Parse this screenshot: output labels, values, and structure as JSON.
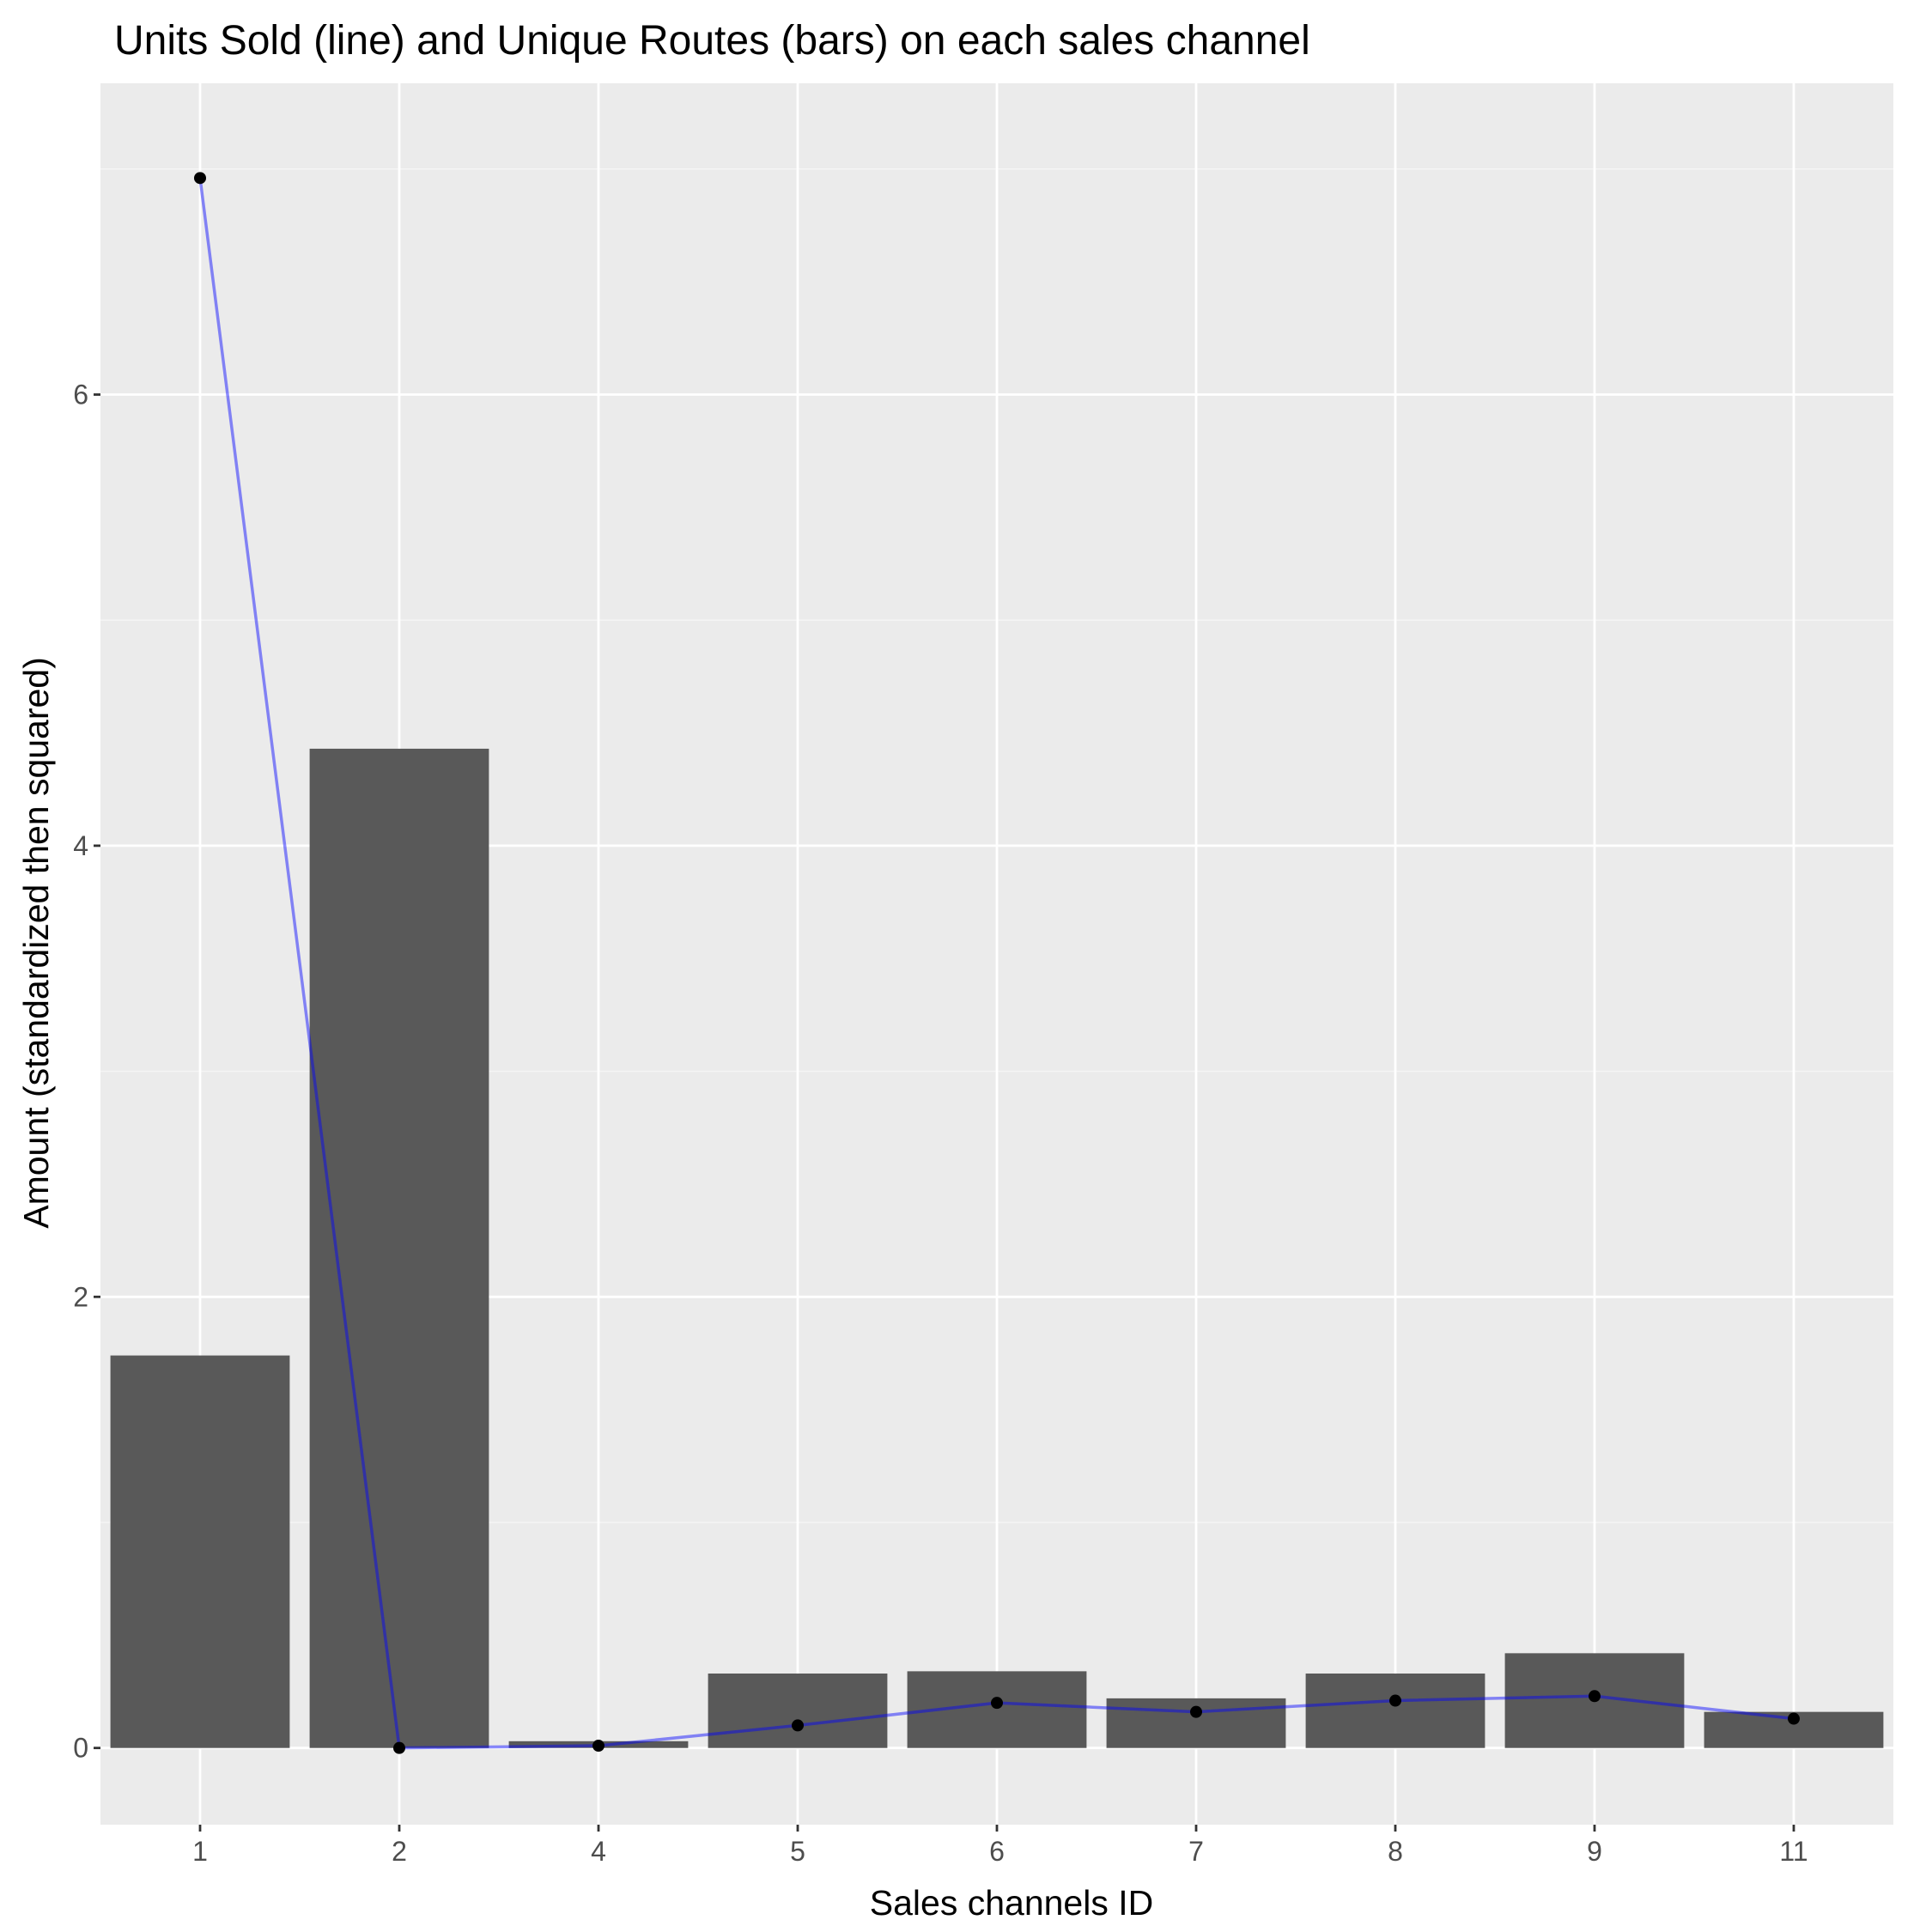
{
  "chart_data": {
    "type": "bar",
    "title": "Units Sold (line) and Unique Routes (bars) on each sales channel",
    "xlabel": "Sales channels ID",
    "ylabel": "Amount (standardized then squared)",
    "categories": [
      "1",
      "2",
      "4",
      "5",
      "6",
      "7",
      "8",
      "9",
      "11"
    ],
    "ylim": [
      -0.34,
      7.38
    ],
    "yticks": [
      0,
      2,
      4,
      6
    ],
    "grid": true,
    "legend": "none",
    "series": [
      {
        "name": "Unique Routes",
        "kind": "bar",
        "color": "#595959",
        "values": [
          1.74,
          4.43,
          0.03,
          0.33,
          0.34,
          0.22,
          0.33,
          0.42,
          0.16
        ]
      },
      {
        "name": "Units Sold",
        "kind": "line",
        "color": "#0000ff",
        "point_color": "#000000",
        "values": [
          6.96,
          0.0,
          0.01,
          0.1,
          0.2,
          0.16,
          0.21,
          0.23,
          0.13
        ]
      }
    ],
    "colors": {
      "panel_background": "#ebebeb",
      "grid_major": "#ffffff",
      "grid_minor": "#f5f5f5"
    }
  }
}
